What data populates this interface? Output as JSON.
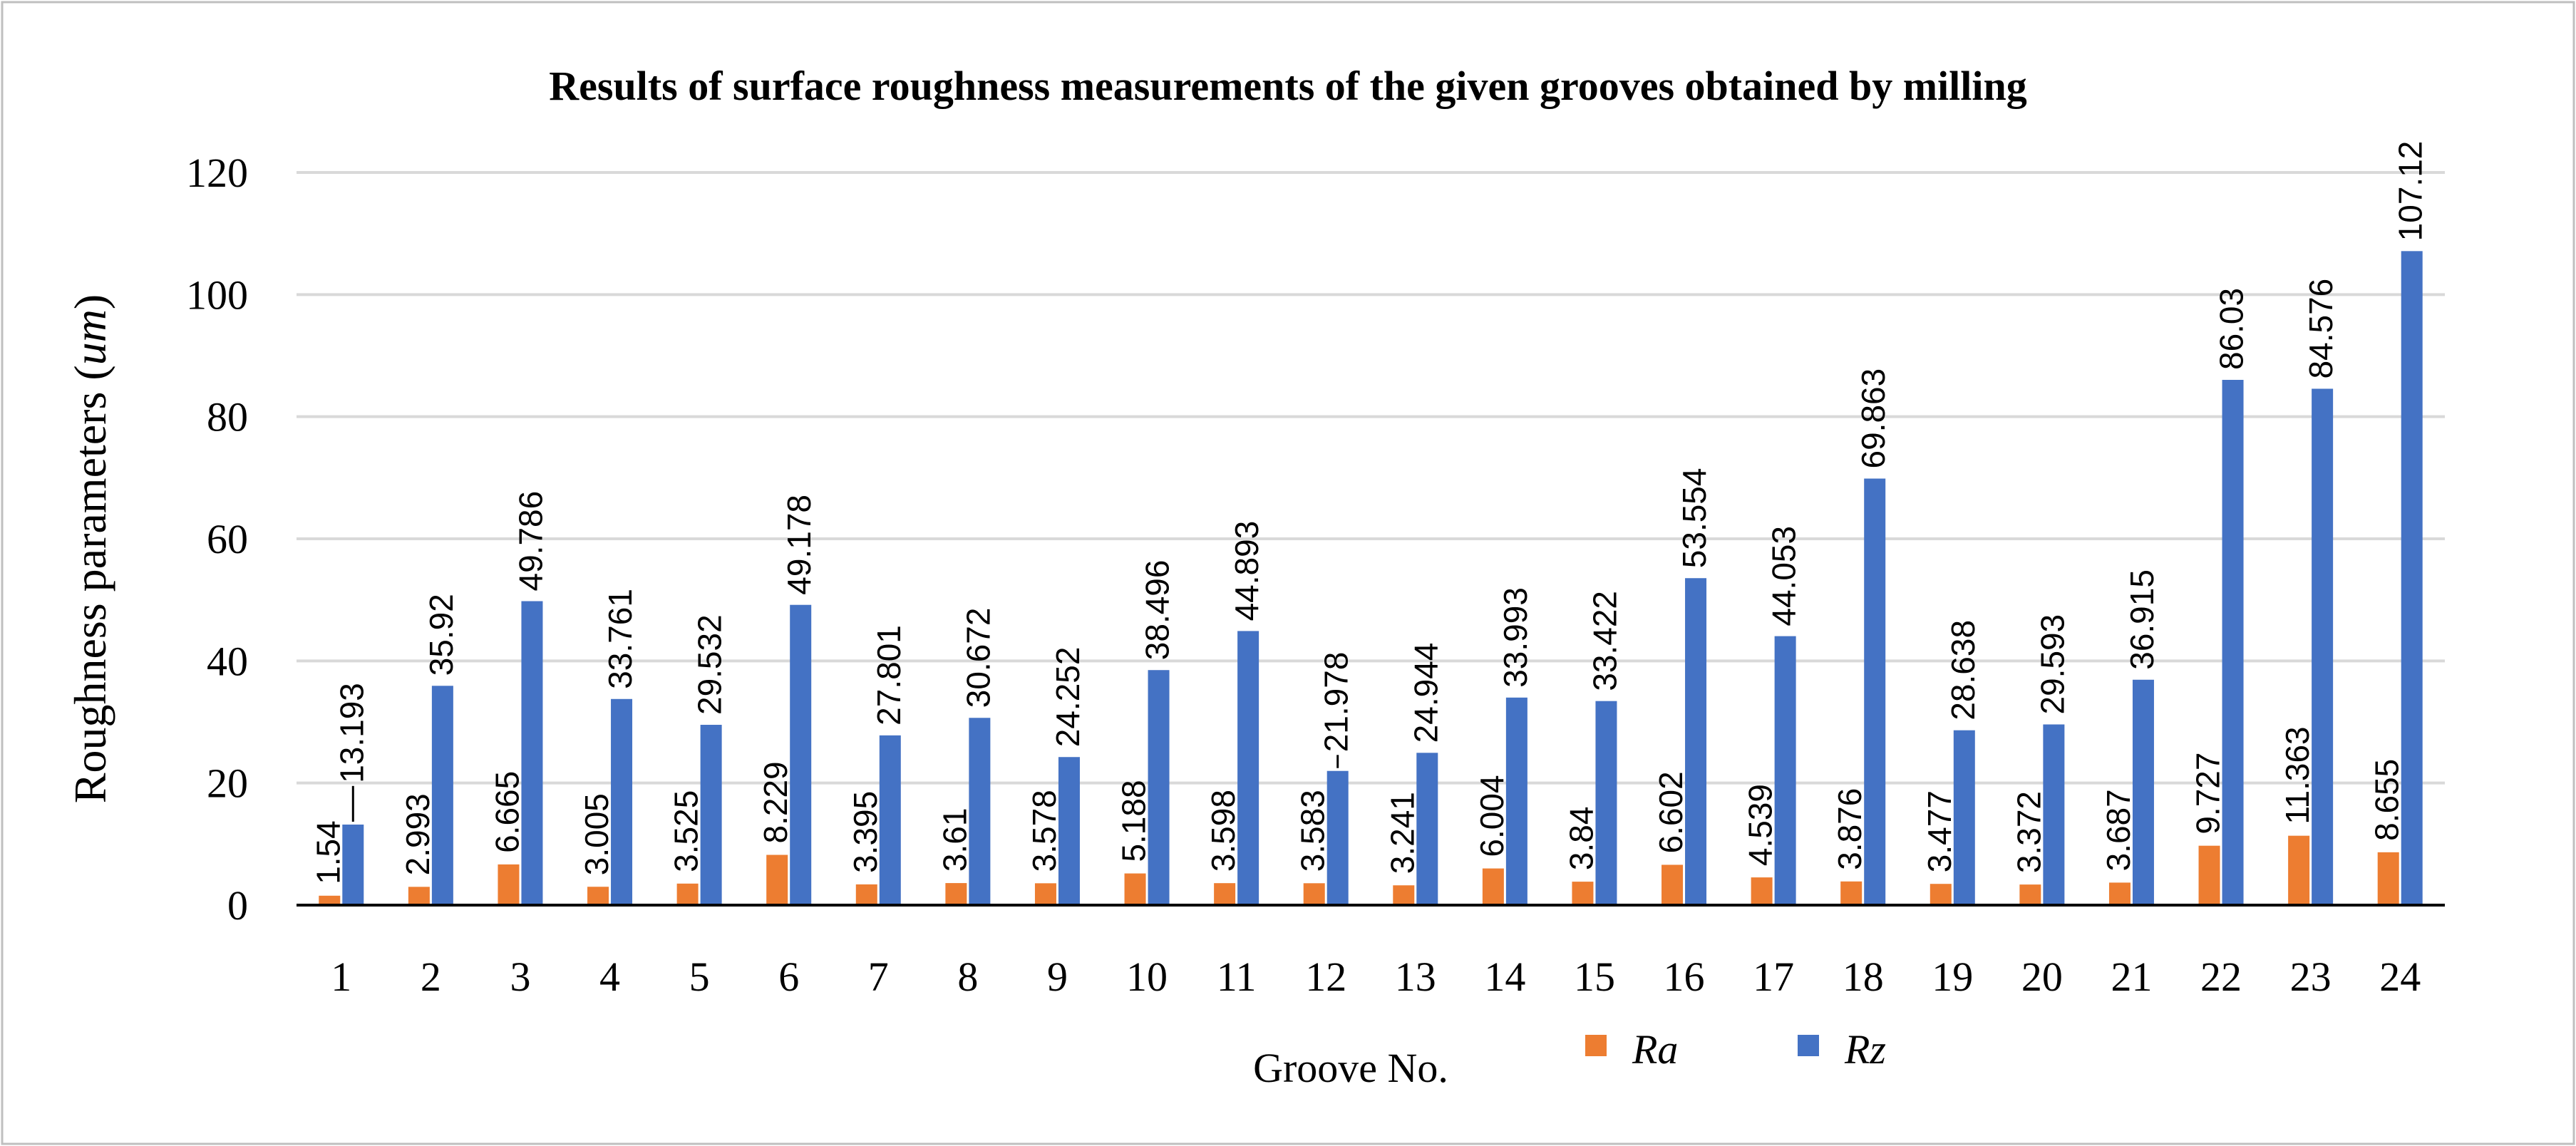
{
  "chart_data": {
    "type": "bar",
    "title": "Results of surface roughness measurements of the given grooves obtained by milling",
    "ylabel_main": "Roughness parameters (",
    "ylabel_unit": "um",
    "ylabel_close": ")",
    "xlabel": "Groove No.",
    "ylim": [
      0,
      120
    ],
    "yticks": [
      "0",
      "20",
      "40",
      "60",
      "80",
      "100",
      "120"
    ],
    "grid": true,
    "legend_position": "bottom",
    "categories": [
      "1",
      "2",
      "3",
      "4",
      "5",
      "6",
      "7",
      "8",
      "9",
      "10",
      "11",
      "12",
      "13",
      "14",
      "15",
      "16",
      "17",
      "18",
      "19",
      "20",
      "21",
      "22",
      "23",
      "24"
    ],
    "series": [
      {
        "name": "Ra",
        "color": "#ED7D31",
        "values": [
          1.54,
          2.993,
          6.665,
          3.005,
          3.525,
          8.229,
          3.395,
          3.61,
          3.578,
          5.188,
          3.598,
          3.583,
          3.241,
          6.004,
          3.84,
          6.602,
          4.539,
          3.876,
          3.477,
          3.372,
          3.687,
          9.727,
          11.363,
          8.655
        ],
        "labels": [
          "1.54",
          "2.993",
          "6.665",
          "3.005",
          "3.525",
          "8.229",
          "3.395",
          "3.61",
          "3.578",
          "5.188",
          "3.598",
          "3.583",
          "3.241",
          "6.004",
          "3.84",
          "6.602",
          "4.539",
          "3.876",
          "3.477",
          "3.372",
          "3.687",
          "9.727",
          "11.363",
          "8.655"
        ]
      },
      {
        "name": "Rz",
        "color": "#4472C4",
        "values": [
          13.193,
          35.92,
          49.786,
          33.761,
          29.532,
          49.178,
          27.801,
          30.672,
          24.252,
          38.496,
          44.893,
          21.978,
          24.944,
          33.993,
          33.422,
          53.554,
          44.053,
          69.863,
          28.638,
          29.593,
          36.915,
          86.03,
          84.576,
          107.12
        ],
        "labels": [
          "13.193",
          "35.92",
          "49.786",
          "33.761",
          "29.532",
          "49.178",
          "27.801",
          "30.672",
          "24.252",
          "38.496",
          "44.893",
          "21.978",
          "24.944",
          "33.993",
          "33.422",
          "53.554",
          "44.053",
          "69.863",
          "28.638",
          "29.593",
          "36.915",
          "86.03",
          "84.576",
          "107.12"
        ]
      }
    ]
  }
}
